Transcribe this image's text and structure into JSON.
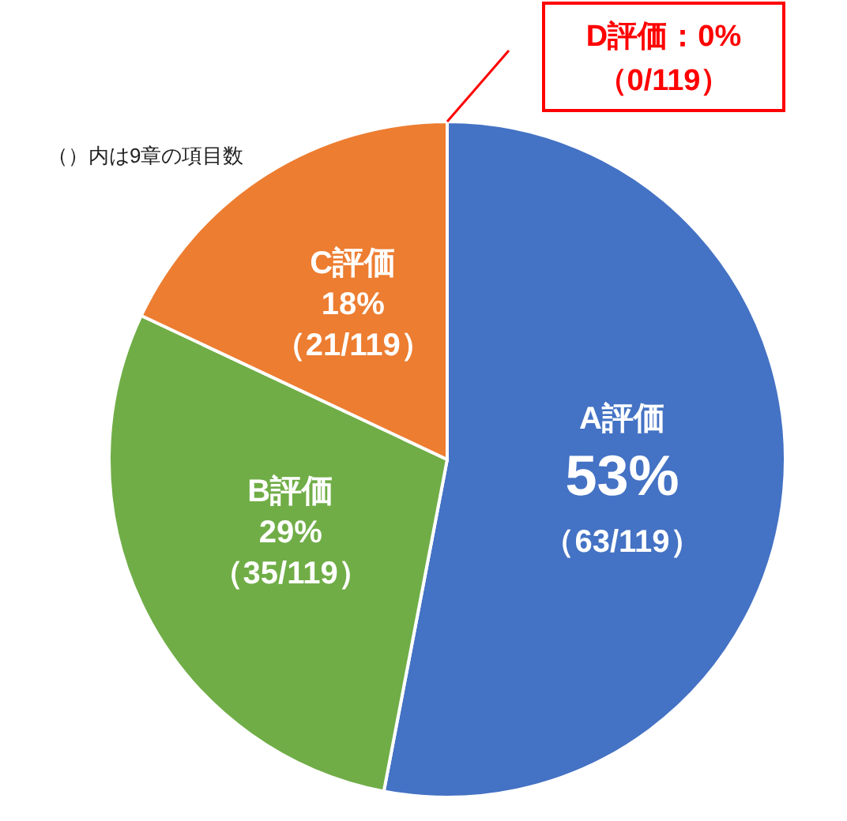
{
  "chart_data": {
    "type": "pie",
    "categories": [
      "A評価",
      "B評価",
      "C評価",
      "D評価"
    ],
    "values": [
      53,
      29,
      18,
      0
    ],
    "value_labels": [
      "53%\n（63/119）",
      "29%\n（35/119）",
      "18%\n（21/119）",
      "：0%\n（0/119）"
    ],
    "colors": [
      "#4472c4",
      "#70ad47",
      "#ed7d31",
      "#ff0000"
    ],
    "annotations": [
      "（）内は9章の項目数"
    ]
  }
}
